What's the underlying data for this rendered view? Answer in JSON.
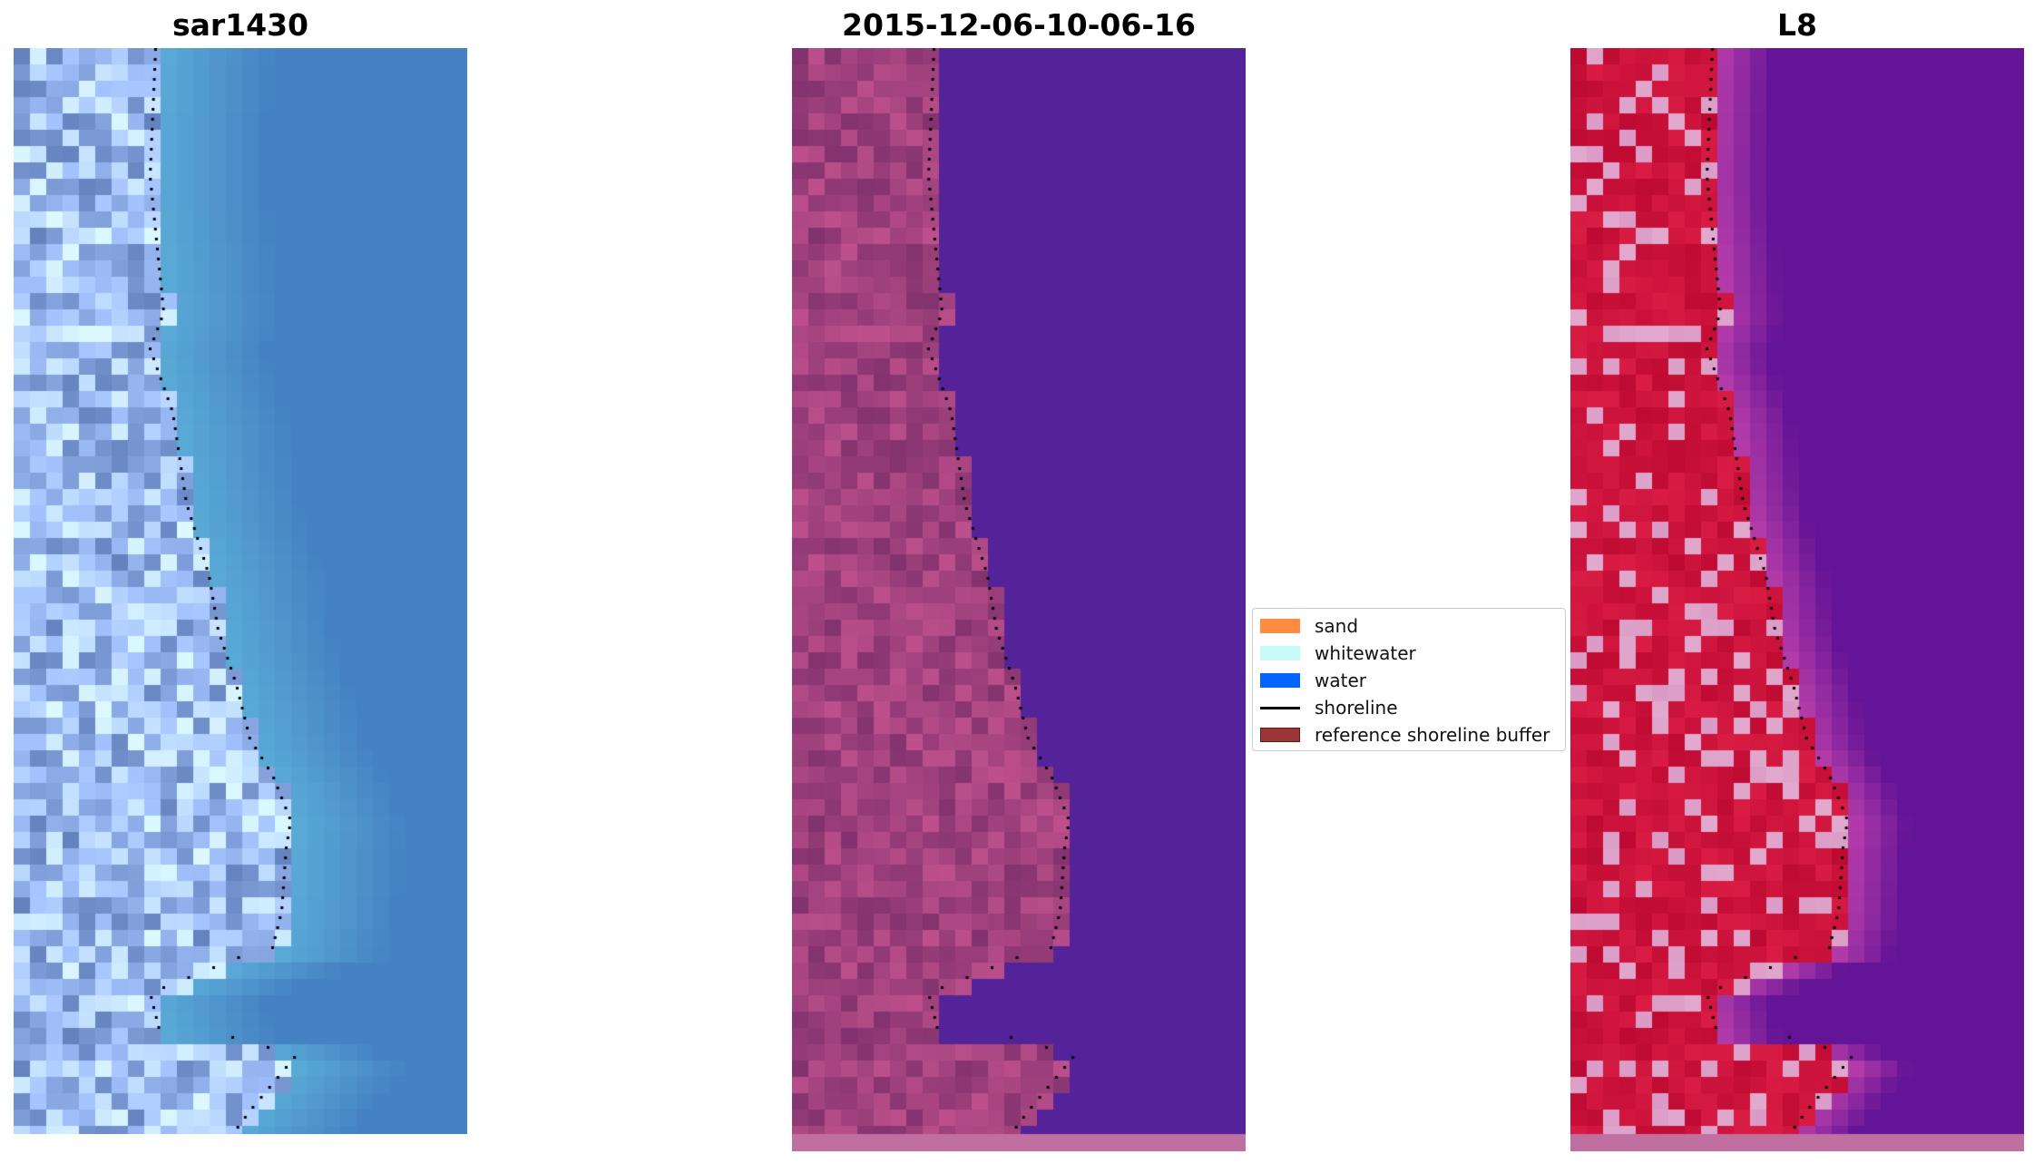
{
  "panels": [
    {
      "title": "sar1430",
      "icon": "rgb-satellite-image"
    },
    {
      "title": "2015-12-06-10-06-16",
      "icon": "classified-image"
    },
    {
      "title": "L8",
      "icon": "false-color-image"
    }
  ],
  "legend": {
    "items": [
      {
        "label": "sand",
        "color": "#ff8c42",
        "kind": "patch"
      },
      {
        "label": "whitewater",
        "color": "#c8fafa",
        "kind": "patch"
      },
      {
        "label": "water",
        "color": "#0066ff",
        "kind": "patch"
      },
      {
        "label": "shoreline",
        "color": "#000000",
        "kind": "line"
      },
      {
        "label": "reference shoreline buffer",
        "color": "#9c3535",
        "kind": "patch"
      }
    ]
  },
  "colors": {
    "water_rgb": "#4a86c8",
    "water_class": "#54239a",
    "land_class": "#8a3a80",
    "water_false": "#641496",
    "land_false": "#c8103e",
    "buffer_strip": "#c070a0"
  }
}
